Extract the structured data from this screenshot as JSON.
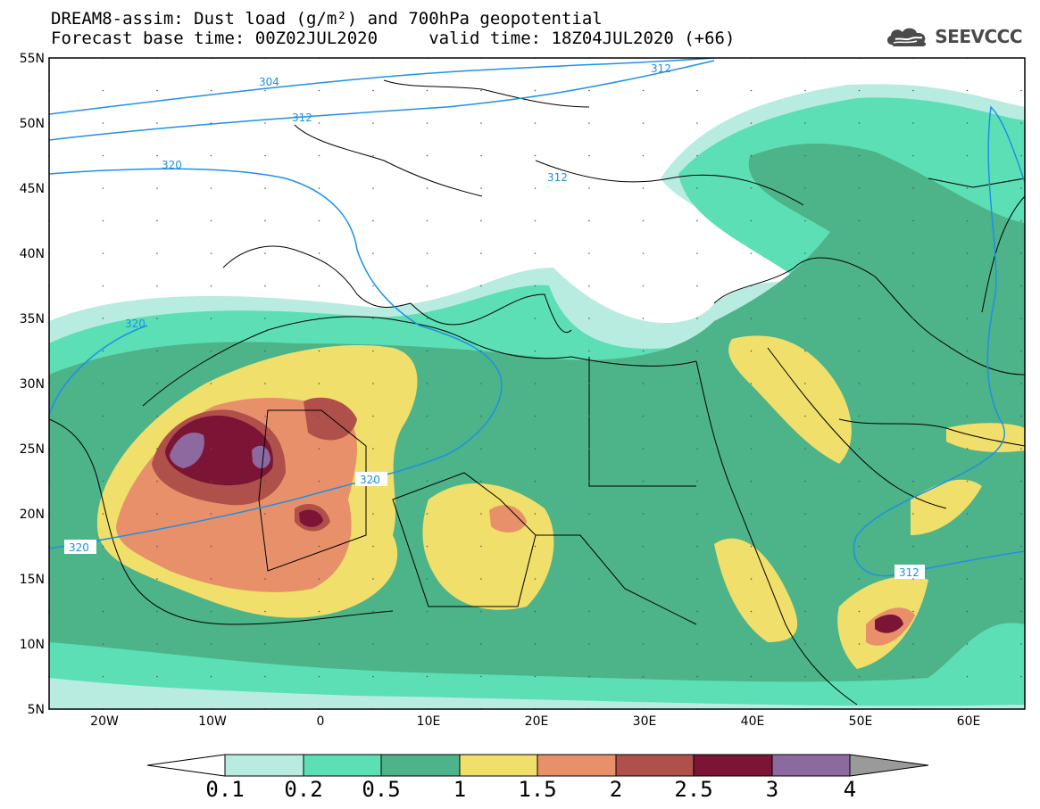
{
  "header": {
    "line1": "DREAM8-assim: Dust load (g/m²) and 700hPa geopotential",
    "line2": "Forecast base time: 00Z02JUL2020     valid time: 18Z04JUL2020 (+66)"
  },
  "logo": {
    "text": "SEEVCCC",
    "icon": "cloud-icon"
  },
  "map": {
    "lat_labels": [
      "55N",
      "50N",
      "45N",
      "40N",
      "35N",
      "30N",
      "25N",
      "20N",
      "15N",
      "10N",
      "5N"
    ],
    "lon_labels": [
      "20W",
      "10W",
      "0",
      "10E",
      "20E",
      "30E",
      "40E",
      "50E",
      "60E"
    ],
    "isolines": {
      "label_312_a": "312",
      "label_304": "304",
      "label_312_b": "312",
      "label_320_a": "320",
      "label_312_c": "312",
      "label_320_b": "320",
      "label_320_c": "320",
      "label_320_d": "320",
      "label_312_d": "312"
    }
  },
  "colorbar": {
    "ticks": [
      "0.1",
      "0.2",
      "0.5",
      "1",
      "1.5",
      "2",
      "2.5",
      "3",
      "4"
    ],
    "colors": [
      "#ffffff",
      "#b8ece0",
      "#5cdfb4",
      "#4db389",
      "#f0df6a",
      "#e8906a",
      "#b0504a",
      "#7c1535",
      "#8c6aa0",
      "#9a9a9a"
    ]
  }
}
